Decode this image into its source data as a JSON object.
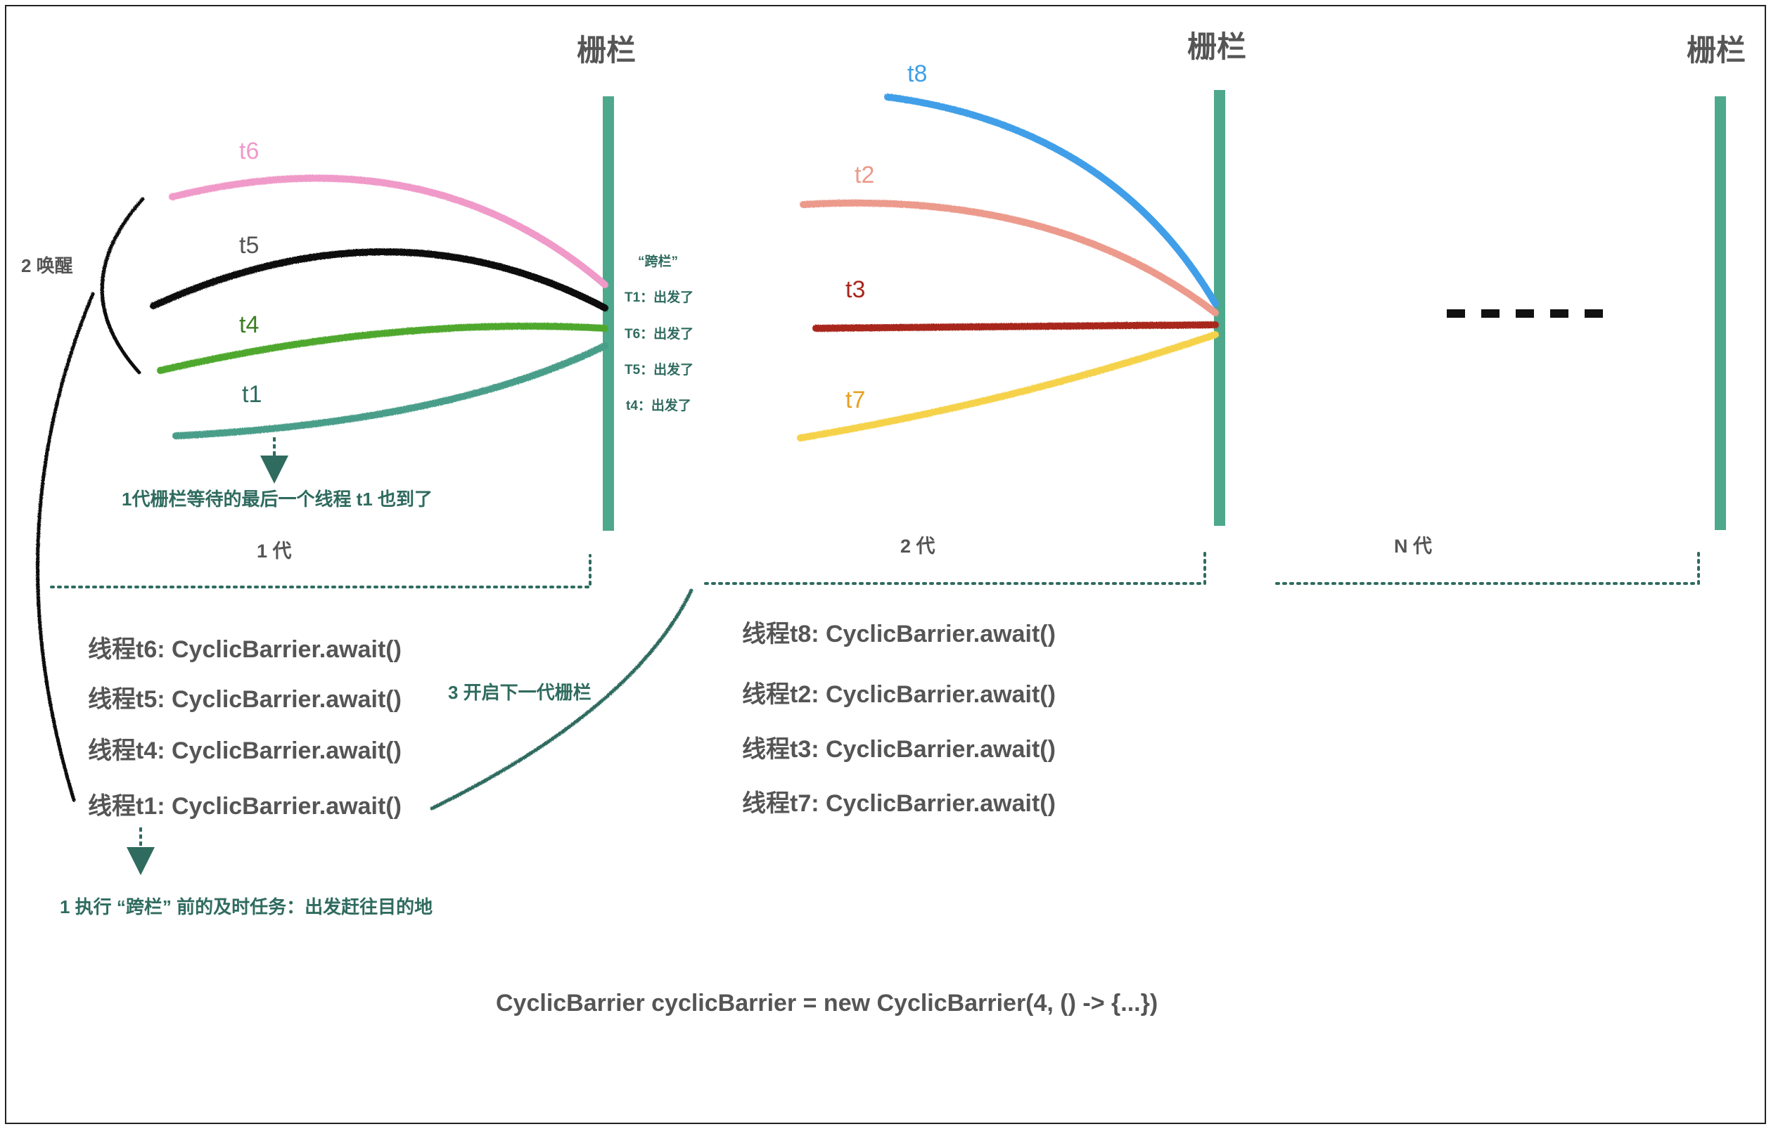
{
  "barriers": [
    {
      "label": "栅栏"
    },
    {
      "label": "栅栏"
    },
    {
      "label": "栅栏"
    }
  ],
  "generations": [
    "1 代",
    "2 代",
    "N 代"
  ],
  "gen1_threads": [
    {
      "name": "t6",
      "color": "#f09ac9"
    },
    {
      "name": "t5",
      "color": "#111111"
    },
    {
      "name": "t4",
      "color": "#4fa82e"
    },
    {
      "name": "t1",
      "color": "#4a9e8a"
    }
  ],
  "gen2_threads": [
    {
      "name": "t8",
      "color": "#3f9fe8"
    },
    {
      "name": "t2",
      "color": "#ec9a8c"
    },
    {
      "name": "t3",
      "color": "#a8281e"
    },
    {
      "name": "t7",
      "color": "#f5d24a"
    }
  ],
  "gen2_label_colors": {
    "t8": "#3f9fe8",
    "t2": "#ec9a8c",
    "t3": "#a8281e",
    "t7": "#e8a020"
  },
  "gen1_label_colors": {
    "t6": "#f09ac9",
    "t5": "#555555",
    "t4": "#3f7f24",
    "t1": "#2f6b5f"
  },
  "crossing": {
    "title": "“跨栏”",
    "items": [
      "T1：出发了",
      "T6：出发了",
      "T5：出发了",
      "t4：出发了"
    ]
  },
  "notes": {
    "wake": "2 唤醒",
    "last_thread": "1代栅栏等待的最后一个线程 t1 也到了",
    "next_gen": "3 开启下一代栅栏",
    "task": "1 执行 “跨栏” 前的及时任务：出发赶往目的地"
  },
  "gen1_awaits": [
    "线程t6: CyclicBarrier.await()",
    "线程t5: CyclicBarrier.await()",
    "线程t4: CyclicBarrier.await()",
    "线程t1: CyclicBarrier.await()"
  ],
  "gen2_awaits": [
    "线程t8: CyclicBarrier.await()",
    "线程t2: CyclicBarrier.await()",
    "线程t3: CyclicBarrier.await()",
    "线程t7: CyclicBarrier.await()"
  ],
  "code": "CyclicBarrier cyclicBarrier = new CyclicBarrier(4, () -> {...})",
  "colors": {
    "barrier": "#4ea88c",
    "dotted": "#2f6b5f",
    "arrow": "#2f6b5f",
    "black_curve": "#111111"
  }
}
